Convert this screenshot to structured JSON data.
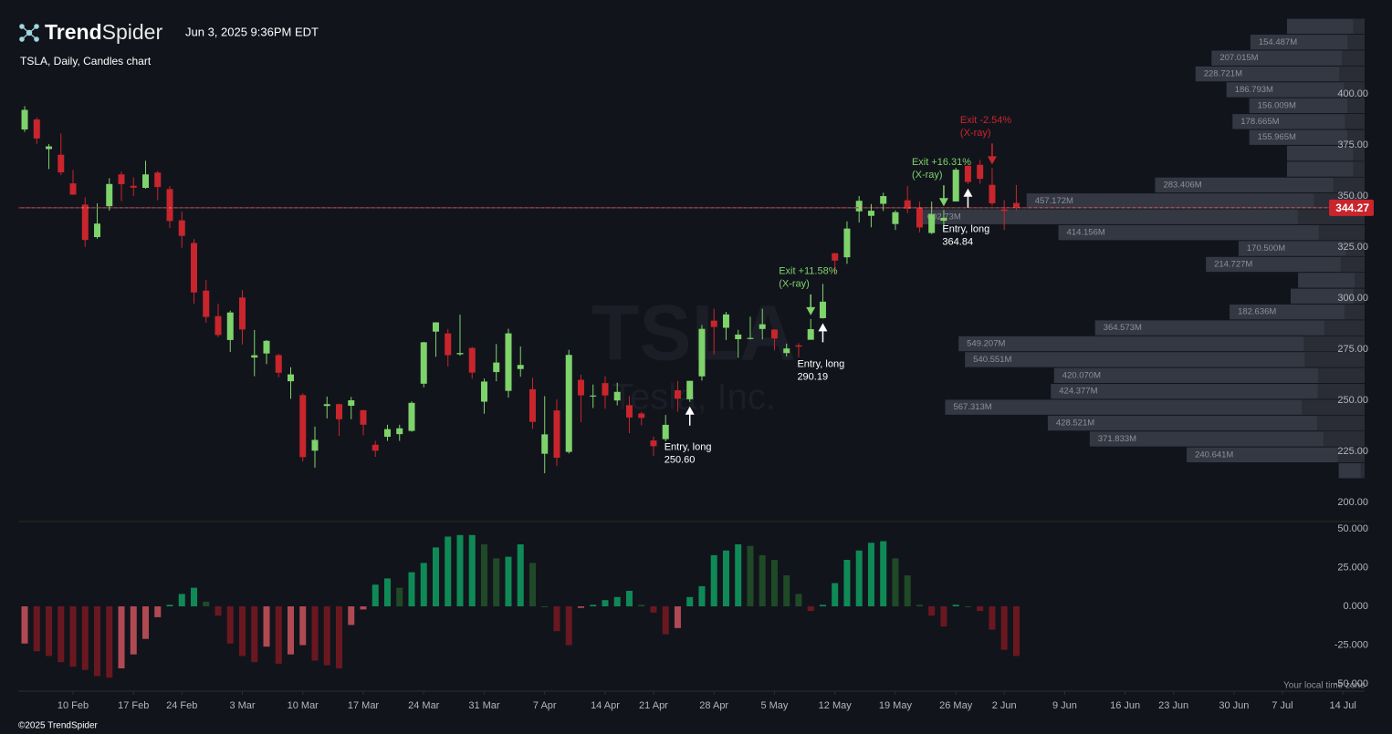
{
  "header": {
    "brand_bold": "Trend",
    "brand_light": "Spider",
    "timestamp": "Jun 3, 2025 9:36PM EDT",
    "subtitle": "TSLA, Daily, Candles chart"
  },
  "footer": {
    "copyright": "©2025 TrendSpider",
    "timezone_note": "Your local time zone"
  },
  "chart_data": [
    {
      "type": "candlestick",
      "watermark": "TSLA",
      "watermark_sub": "Tesla, Inc.",
      "categories": [
        "4 Feb",
        "5 Feb",
        "6 Feb",
        "7 Feb",
        "10 Feb",
        "11 Feb",
        "12 Feb",
        "13 Feb",
        "14 Feb",
        "18 Feb",
        "19 Feb",
        "20 Feb",
        "21 Feb",
        "24 Feb",
        "25 Feb",
        "26 Feb",
        "27 Feb",
        "28 Feb",
        "3 Mar",
        "4 Mar",
        "5 Mar",
        "6 Mar",
        "7 Mar",
        "10 Mar",
        "11 Mar",
        "12 Mar",
        "13 Mar",
        "14 Mar",
        "17 Mar",
        "18 Mar",
        "19 Mar",
        "20 Mar",
        "21 Mar",
        "24 Mar",
        "25 Mar",
        "26 Mar",
        "27 Mar",
        "28 Mar",
        "31 Mar",
        "1 Apr",
        "2 Apr",
        "3 Apr",
        "4 Apr",
        "7 Apr",
        "8 Apr",
        "9 Apr",
        "10 Apr",
        "11 Apr",
        "14 Apr",
        "15 Apr",
        "16 Apr",
        "17 Apr",
        "21 Apr",
        "22 Apr",
        "23 Apr",
        "24 Apr",
        "25 Apr",
        "28 Apr",
        "29 Apr",
        "30 Apr",
        "1 May",
        "2 May",
        "5 May",
        "6 May",
        "7 May",
        "8 May",
        "9 May",
        "12 May",
        "13 May",
        "14 May",
        "15 May",
        "16 May",
        "19 May",
        "20 May",
        "21 May",
        "22 May",
        "23 May",
        "27 May",
        "28 May",
        "29 May",
        "30 May",
        "2 Jun",
        "3 Jun"
      ],
      "open": [
        382.6,
        387.5,
        373,
        370.2,
        356.2,
        345.8,
        329.9,
        345,
        360.6,
        355,
        354,
        361.5,
        353.4,
        338.1,
        327,
        303.7,
        291.2,
        279.5,
        300.3,
        270.9,
        272.9,
        272.1,
        259.3,
        252.5,
        225.3,
        247.2,
        248.1,
        247.3,
        245.1,
        228.2,
        232.1,
        233.4,
        234.99,
        258.1,
        283.6,
        282.7,
        272.5,
        275.6,
        249.3,
        263.8,
        254.6,
        265.3,
        255.4,
        223.8,
        245,
        224.7,
        260,
        251.8,
        258.4,
        249.9,
        247.6,
        243.5,
        230.3,
        230.96,
        254.9,
        250.5,
        261.7,
        288.98,
        285.5,
        279.9,
        280,
        284.9,
        284.6,
        273.1,
        276.9,
        279.6,
        290.2,
        321.99,
        320,
        342.5,
        340.3,
        346.2,
        336.3,
        347.9,
        344.4,
        331.9,
        337.9,
        347.35,
        364.8,
        365.3,
        355.5,
        343.5,
        346.6
      ],
      "high": [
        394,
        388.4,
        375.4,
        380.6,
        362.7,
        349.4,
        346.4,
        358.7,
        362,
        359.1,
        367.3,
        362.3,
        354.9,
        342.4,
        328.9,
        309,
        297.2,
        293.9,
        303.9,
        284.4,
        279.5,
        272.7,
        266.2,
        253.4,
        237.1,
        251.8,
        248.3,
        251.6,
        245.4,
        230.1,
        238,
        238,
        249.5,
        278.6,
        288.2,
        284.9,
        291.9,
        276.1,
        260.6,
        277.5,
        284.99,
        276.3,
        261,
        252,
        250.4,
        274.7,
        262.5,
        257.7,
        261.8,
        258.6,
        251.97,
        244.3,
        232.2,
        242.8,
        259.45,
        259.54,
        286.85,
        294.86,
        293.3,
        284.45,
        290.9,
        294.8,
        284.8,
        277.7,
        277.9,
        289.8,
        307,
        322.2,
        337.6,
        350,
        346.1,
        351.6,
        343,
        354.99,
        347.35,
        347.3,
        343.2,
        363.8,
        365,
        367.7,
        363.7,
        348,
        355.4
      ],
      "low": [
        381.4,
        375.5,
        363.2,
        360.3,
        350.5,
        325.1,
        329.1,
        342.9,
        347.5,
        350,
        353.6,
        348,
        334.4,
        324.7,
        297.3,
        288,
        280.9,
        273.6,
        277.3,
        261.8,
        267.7,
        261.2,
        250.7,
        220,
        217,
        241.1,
        232.6,
        240.7,
        232.8,
        222.3,
        230.1,
        230.1,
        234.6,
        256.3,
        271.3,
        266.5,
        271.8,
        260.6,
        243.4,
        259.3,
        251.3,
        261.5,
        236,
        214.25,
        217.8,
        223.9,
        239.3,
        246.2,
        245.9,
        247.5,
        233.9,
        237.7,
        222.8,
        229.85,
        244.4,
        249.2,
        259.6,
        272.4,
        279.5,
        270.8,
        279.8,
        279.8,
        274.4,
        271.4,
        271,
        279.8,
        290,
        311.5,
        316.8,
        337,
        334.7,
        342.7,
        333.4,
        341.6,
        332.2,
        331.4,
        333.2,
        347.3,
        355.9,
        356,
        345.3,
        333.3,
        343
      ],
      "close": [
        392.2,
        378.2,
        374.3,
        361.6,
        350.7,
        328.5,
        336.5,
        355.9,
        355.8,
        354.1,
        360.6,
        354.4,
        337.8,
        330.5,
        302.8,
        290.8,
        281.95,
        292.98,
        284.65,
        272.04,
        279.1,
        263.45,
        262.67,
        222.15,
        230.58,
        248.09,
        240.68,
        249.98,
        238.01,
        225.31,
        235.86,
        236.26,
        248.71,
        278.39,
        288.14,
        272.06,
        273.13,
        263.55,
        259.16,
        268.46,
        282.76,
        267.28,
        239.43,
        233.29,
        221.86,
        272.2,
        252.4,
        252.31,
        252.35,
        254.11,
        241.55,
        241.37,
        227.5,
        237.97,
        250.74,
        259.51,
        284.95,
        285.88,
        292.03,
        282.16,
        280.52,
        287.21,
        280.26,
        275.35,
        276.22,
        284.82,
        298.26,
        318.38,
        334.07,
        347.68,
        342.82,
        349.98,
        342.09,
        343.82,
        334.62,
        341.04,
        339.34,
        362.89,
        356.9,
        358.43,
        346.46,
        342.69,
        344.27
      ],
      "colors": {
        "up": "#7ed36b",
        "down": "#c9252c",
        "last_price": "#c9252c"
      },
      "last_price": 344.27,
      "xlim": [
        -0.53,
        110.8
      ],
      "xticks": [
        {
          "value": 4,
          "label": "10 Feb"
        },
        {
          "value": 9,
          "label": "17 Feb"
        },
        {
          "value": 13,
          "label": "24 Feb"
        },
        {
          "value": 18,
          "label": "3 Mar"
        },
        {
          "value": 23,
          "label": "10 Mar"
        },
        {
          "value": 28,
          "label": "17 Mar"
        },
        {
          "value": 33,
          "label": "24 Mar"
        },
        {
          "value": 38,
          "label": "31 Mar"
        },
        {
          "value": 43,
          "label": "7 Apr"
        },
        {
          "value": 48,
          "label": "14 Apr"
        },
        {
          "value": 52,
          "label": "21 Apr"
        },
        {
          "value": 57,
          "label": "28 Apr"
        },
        {
          "value": 62,
          "label": "5 May"
        },
        {
          "value": 67,
          "label": "12 May"
        },
        {
          "value": 72,
          "label": "19 May"
        },
        {
          "value": 77,
          "label": "26 May"
        },
        {
          "value": 81,
          "label": "2 Jun"
        },
        {
          "value": 86,
          "label": "9 Jun"
        },
        {
          "value": 91,
          "label": "16 Jun"
        },
        {
          "value": 95,
          "label": "23 Jun"
        },
        {
          "value": 100,
          "label": "30 Jun"
        },
        {
          "value": 104,
          "label": "7 Jul"
        },
        {
          "value": 109,
          "label": "14 Jul"
        }
      ],
      "ylim": [
        190.6,
        439.3
      ],
      "yticks": [
        {
          "value": 200,
          "label": "200.00"
        },
        {
          "value": 225,
          "label": "225.00"
        },
        {
          "value": 250,
          "label": "250.00"
        },
        {
          "value": 275,
          "label": "275.00"
        },
        {
          "value": 300,
          "label": "300.00"
        },
        {
          "value": 325,
          "label": "325.00"
        },
        {
          "value": 350,
          "label": "350.00"
        },
        {
          "value": 375,
          "label": "375.00"
        },
        {
          "value": 400,
          "label": "400.00"
        }
      ],
      "markers": [
        {
          "kind": "entry",
          "at": "24 Apr",
          "label": "Entry, long",
          "price": {
            "value": 250.6,
            "label": "250.60"
          },
          "color": "#ffffff"
        },
        {
          "kind": "exit",
          "at": "8 May",
          "label": "Exit +11.58%",
          "note": "(X-ray)",
          "color": "#7ed36b"
        },
        {
          "kind": "entry",
          "at": "9 May",
          "label": "Entry, long",
          "price": {
            "value": 290.19,
            "label": "290.19"
          },
          "color": "#ffffff"
        },
        {
          "kind": "exit",
          "at": "23 May",
          "label": "Exit +16.31%",
          "note": "(X-ray)",
          "color": "#7ed36b"
        },
        {
          "kind": "entry",
          "at": "28 May",
          "label": "Entry, long",
          "price": {
            "value": 364.84,
            "label": "364.84"
          },
          "color": "#ffffff"
        },
        {
          "kind": "exit",
          "at": "30 May",
          "label": "Exit -2.54%",
          "note": "(X-ray)",
          "color": "#c9252c"
        }
      ],
      "volume_profile": {
        "price_range": [
          211.6,
          437
        ],
        "color": "#343843",
        "values": [
          105,
          154.487,
          207.015,
          228.721,
          186.793,
          156.009,
          178.665,
          155.965,
          105,
          105,
          283.406,
          457.172,
          602.73,
          414.156,
          170.5,
          214.727,
          90,
          100,
          182.636,
          364.573,
          549.207,
          540.551,
          420.07,
          424.377,
          567.313,
          428.521,
          371.833,
          240.641,
          35
        ],
        "value_labels": [
          null,
          "154.487M",
          "207.015M",
          "228.721M",
          "186.793M",
          "156.009M",
          "178.665M",
          "155.965M",
          null,
          null,
          "283.406M",
          "457.172M",
          "602.73M",
          "414.156M",
          "170.500M",
          "214.727M",
          null,
          null,
          "182.636M",
          "364.573M",
          "549.207M",
          "540.551M",
          "420.070M",
          "424.377M",
          "567.313M",
          "428.521M",
          "371.833M",
          "240.641M",
          null
        ]
      }
    },
    {
      "type": "oscillator",
      "values": [
        -24,
        -29,
        -32,
        -36,
        -39,
        -41,
        -45,
        -46,
        -40,
        -31,
        -21,
        -7,
        1,
        8,
        12,
        3,
        -6,
        -24,
        -32,
        -36,
        -26,
        -37,
        -31,
        -25,
        -35,
        -38,
        -40,
        -12,
        -2,
        14,
        18,
        12,
        22,
        28,
        38,
        45,
        46,
        46,
        40,
        31,
        32,
        40,
        28,
        0,
        -16,
        -25,
        -1,
        1,
        4,
        6,
        10,
        1,
        -4,
        -18,
        -14,
        6,
        13,
        33,
        36,
        40,
        39,
        33,
        30,
        20,
        8,
        -3,
        1,
        15,
        30,
        36,
        41,
        42,
        31,
        20,
        1,
        -6,
        -13,
        1,
        0,
        -3,
        -15,
        -28,
        -32
      ],
      "colors": {
        "positive_rising": "#0f8a57",
        "positive_falling": "#1f4a27",
        "negative_rising": "#b04a52",
        "negative_falling": "#6a1820"
      },
      "ylim": [
        -54.7,
        54.7
      ],
      "yticks": [
        {
          "value": -50,
          "label": "-50.000"
        },
        {
          "value": -25,
          "label": "-25.000"
        },
        {
          "value": 0,
          "label": "0.000"
        },
        {
          "value": 25,
          "label": "25.000"
        },
        {
          "value": 50,
          "label": "50.000"
        }
      ]
    }
  ]
}
